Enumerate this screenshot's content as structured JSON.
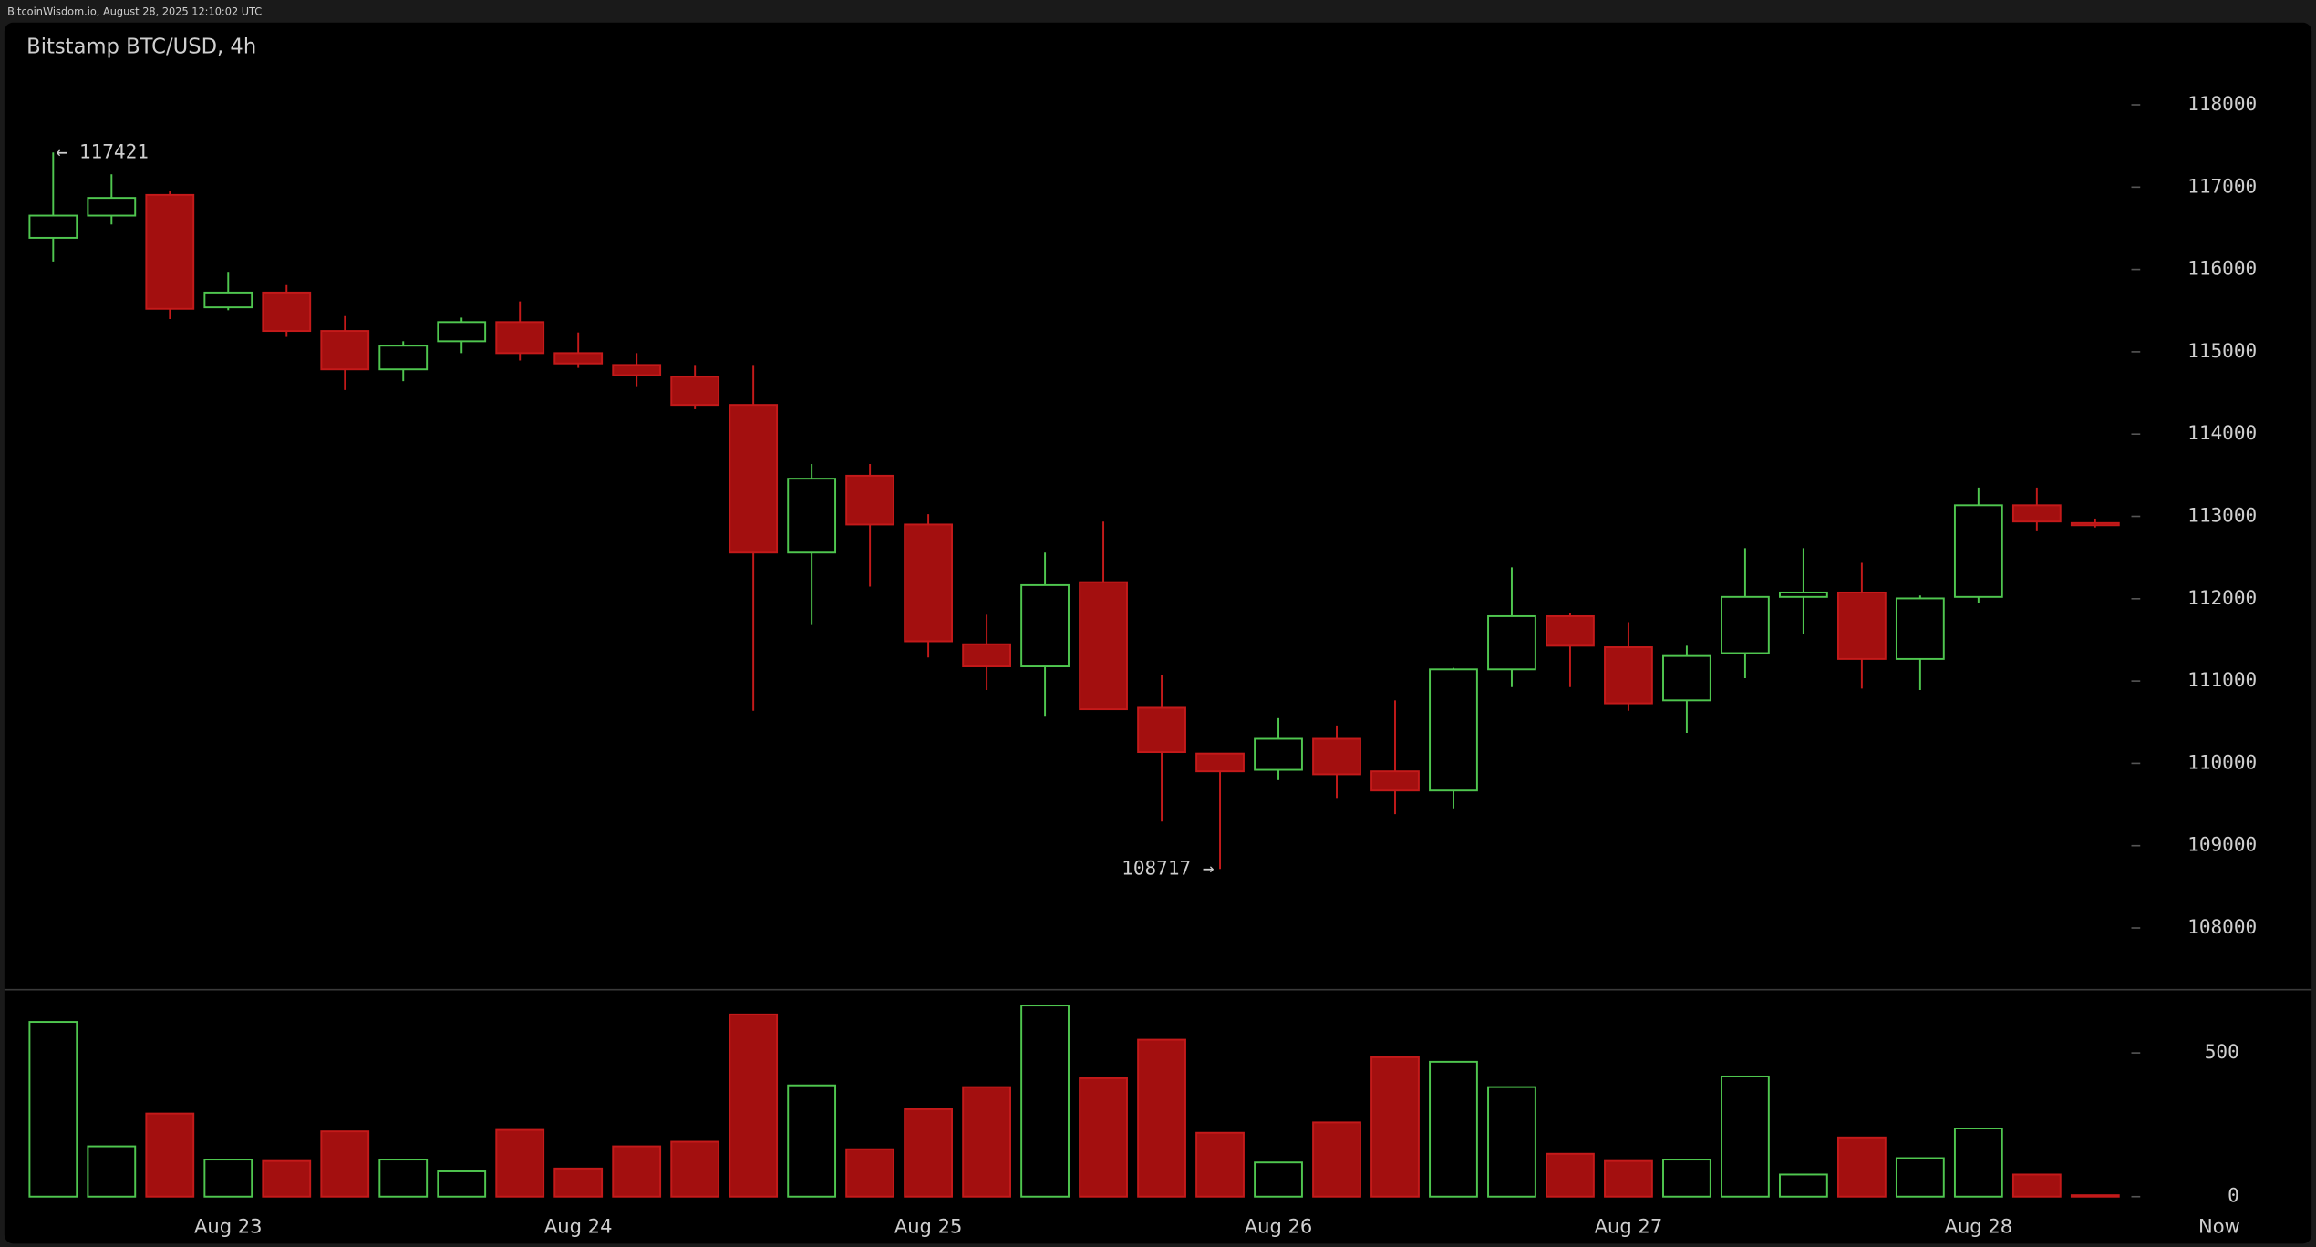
{
  "header": "BitcoinWisdom.io, August 28, 2025 12:10:02 UTC",
  "chart_data": {
    "type": "candlestick",
    "title": "Bitstamp BTC/USD, 4h",
    "categories": [
      null,
      null,
      null,
      "Aug 23",
      null,
      null,
      null,
      null,
      null,
      "Aug 24",
      null,
      null,
      null,
      null,
      null,
      "Aug 25",
      null,
      null,
      null,
      null,
      null,
      "Aug 26",
      null,
      null,
      null,
      null,
      null,
      "Aug 27",
      null,
      null,
      null,
      null,
      null,
      "Aug 28",
      null,
      null
    ],
    "now_label": "Now",
    "open": [
      116384,
      116654,
      116905,
      115540,
      115720,
      115253,
      114786,
      115128,
      115361,
      114984,
      114840,
      114697,
      114355,
      112560,
      113494,
      112901,
      111447,
      111178,
      112201,
      110675,
      110119,
      109921,
      110298,
      109903,
      109670,
      111142,
      111788,
      111411,
      110765,
      111339,
      112022,
      112076,
      111268,
      112022,
      113135,
      112919
    ],
    "high": [
      117421,
      117156,
      116959,
      115971,
      115810,
      115433,
      115128,
      115415,
      115612,
      115235,
      114984,
      114840,
      114840,
      113637,
      113637,
      113027,
      111806,
      112560,
      112937,
      111070,
      110119,
      110549,
      110460,
      110765,
      111160,
      112381,
      111824,
      111716,
      111429,
      112614,
      112614,
      112435,
      112040,
      113350,
      113350,
      112973
    ],
    "low": [
      116097,
      116546,
      115397,
      115505,
      115181,
      114535,
      114643,
      114984,
      114894,
      114804,
      114571,
      114302,
      110639,
      111681,
      112147,
      111286,
      110891,
      110567,
      110657,
      109293,
      108717,
      109796,
      109580,
      109383,
      109454,
      110926,
      110926,
      110639,
      110370,
      111034,
      111573,
      110909,
      110891,
      111950,
      112830,
      112865
    ],
    "close": [
      116654,
      116869,
      115522,
      115720,
      115253,
      114786,
      115074,
      115361,
      114984,
      114858,
      114715,
      114355,
      112560,
      113458,
      112901,
      111483,
      111178,
      112165,
      110657,
      110137,
      109903,
      110298,
      109867,
      109670,
      111142,
      111788,
      111429,
      110729,
      111304,
      112022,
      112076,
      111268,
      112004,
      113135,
      112937,
      112901
    ],
    "volume": [
      608,
      175,
      289,
      129,
      124,
      227,
      129,
      88,
      232,
      98,
      175,
      191,
      634,
      387,
      165,
      304,
      381,
      665,
      412,
      546,
      222,
      119,
      258,
      485,
      469,
      381,
      149,
      124,
      129,
      418,
      77,
      206,
      134,
      237,
      77,
      5
    ],
    "ylim": [
      107250,
      119000
    ],
    "yticks": [
      108000,
      109000,
      110000,
      111000,
      112000,
      113000,
      114000,
      115000,
      116000,
      117000,
      118000
    ],
    "volume_ylim": [
      -25,
      720
    ],
    "volume_yticks": [
      0,
      500
    ],
    "up_color": "#4fc64f",
    "down_color": "#a30f0f",
    "annotations": {
      "max_high": "← 117421",
      "min_low": "108717 →"
    }
  }
}
